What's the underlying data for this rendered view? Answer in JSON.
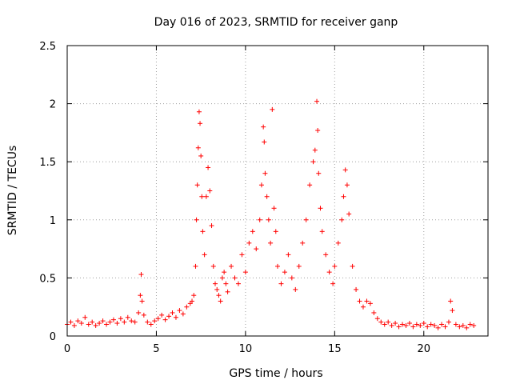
{
  "chart_data": {
    "type": "scatter",
    "title": "Day 016 of 2023, SRMTID for receiver ganp",
    "xlabel": "GPS time / hours",
    "ylabel": "SRMTID / TECUs",
    "xlim": [
      0,
      23.6
    ],
    "ylim": [
      0,
      2.5
    ],
    "xticks": [
      0,
      5,
      10,
      15,
      20
    ],
    "xtick_labels": [
      "0",
      "5",
      "10",
      "15",
      "20"
    ],
    "yticks": [
      0,
      0.5,
      1,
      1.5,
      2,
      2.5
    ],
    "ytick_labels": [
      "0",
      "0.5",
      "1",
      "1.5",
      "2",
      "2.5"
    ],
    "grid": true,
    "marker": "+",
    "color": "#ff0000",
    "series": [
      {
        "name": "SRMTID",
        "points": [
          [
            0.0,
            0.1
          ],
          [
            0.2,
            0.12
          ],
          [
            0.4,
            0.09
          ],
          [
            0.6,
            0.13
          ],
          [
            0.8,
            0.11
          ],
          [
            1.0,
            0.16
          ],
          [
            1.2,
            0.1
          ],
          [
            1.4,
            0.12
          ],
          [
            1.6,
            0.09
          ],
          [
            1.8,
            0.11
          ],
          [
            2.0,
            0.13
          ],
          [
            2.2,
            0.1
          ],
          [
            2.4,
            0.12
          ],
          [
            2.6,
            0.14
          ],
          [
            2.8,
            0.11
          ],
          [
            3.0,
            0.15
          ],
          [
            3.2,
            0.12
          ],
          [
            3.4,
            0.16
          ],
          [
            3.6,
            0.13
          ],
          [
            3.8,
            0.12
          ],
          [
            4.0,
            0.2
          ],
          [
            4.1,
            0.35
          ],
          [
            4.15,
            0.53
          ],
          [
            4.2,
            0.3
          ],
          [
            4.3,
            0.18
          ],
          [
            4.5,
            0.12
          ],
          [
            4.7,
            0.1
          ],
          [
            4.9,
            0.13
          ],
          [
            5.1,
            0.15
          ],
          [
            5.3,
            0.18
          ],
          [
            5.5,
            0.14
          ],
          [
            5.7,
            0.17
          ],
          [
            5.9,
            0.2
          ],
          [
            6.1,
            0.16
          ],
          [
            6.3,
            0.22
          ],
          [
            6.5,
            0.19
          ],
          [
            6.7,
            0.25
          ],
          [
            6.9,
            0.28
          ],
          [
            7.0,
            0.3
          ],
          [
            7.1,
            0.35
          ],
          [
            7.2,
            0.6
          ],
          [
            7.25,
            1.0
          ],
          [
            7.3,
            1.3
          ],
          [
            7.35,
            1.62
          ],
          [
            7.4,
            1.93
          ],
          [
            7.45,
            1.83
          ],
          [
            7.5,
            1.55
          ],
          [
            7.55,
            1.2
          ],
          [
            7.6,
            0.9
          ],
          [
            7.7,
            0.7
          ],
          [
            7.8,
            1.2
          ],
          [
            7.9,
            1.45
          ],
          [
            8.0,
            1.25
          ],
          [
            8.1,
            0.95
          ],
          [
            8.2,
            0.6
          ],
          [
            8.3,
            0.45
          ],
          [
            8.4,
            0.4
          ],
          [
            8.5,
            0.35
          ],
          [
            8.6,
            0.3
          ],
          [
            8.7,
            0.5
          ],
          [
            8.8,
            0.55
          ],
          [
            8.9,
            0.45
          ],
          [
            9.0,
            0.38
          ],
          [
            9.2,
            0.6
          ],
          [
            9.4,
            0.5
          ],
          [
            9.6,
            0.45
          ],
          [
            9.8,
            0.7
          ],
          [
            10.0,
            0.55
          ],
          [
            10.2,
            0.8
          ],
          [
            10.4,
            0.9
          ],
          [
            10.6,
            0.75
          ],
          [
            10.8,
            1.0
          ],
          [
            10.9,
            1.3
          ],
          [
            11.0,
            1.8
          ],
          [
            11.05,
            1.67
          ],
          [
            11.1,
            1.4
          ],
          [
            11.2,
            1.2
          ],
          [
            11.3,
            1.0
          ],
          [
            11.4,
            0.8
          ],
          [
            11.5,
            1.95
          ],
          [
            11.6,
            1.1
          ],
          [
            11.7,
            0.9
          ],
          [
            11.8,
            0.6
          ],
          [
            12.0,
            0.45
          ],
          [
            12.2,
            0.55
          ],
          [
            12.4,
            0.7
          ],
          [
            12.6,
            0.5
          ],
          [
            12.8,
            0.4
          ],
          [
            13.0,
            0.6
          ],
          [
            13.2,
            0.8
          ],
          [
            13.4,
            1.0
          ],
          [
            13.6,
            1.3
          ],
          [
            13.8,
            1.5
          ],
          [
            13.9,
            1.6
          ],
          [
            14.0,
            2.02
          ],
          [
            14.05,
            1.77
          ],
          [
            14.1,
            1.4
          ],
          [
            14.2,
            1.1
          ],
          [
            14.3,
            0.9
          ],
          [
            14.5,
            0.7
          ],
          [
            14.7,
            0.55
          ],
          [
            14.9,
            0.45
          ],
          [
            15.0,
            0.6
          ],
          [
            15.2,
            0.8
          ],
          [
            15.4,
            1.0
          ],
          [
            15.5,
            1.2
          ],
          [
            15.6,
            1.43
          ],
          [
            15.7,
            1.3
          ],
          [
            15.8,
            1.05
          ],
          [
            16.0,
            0.6
          ],
          [
            16.2,
            0.4
          ],
          [
            16.4,
            0.3
          ],
          [
            16.6,
            0.25
          ],
          [
            16.8,
            0.3
          ],
          [
            17.0,
            0.28
          ],
          [
            17.2,
            0.2
          ],
          [
            17.4,
            0.15
          ],
          [
            17.6,
            0.12
          ],
          [
            17.8,
            0.1
          ],
          [
            18.0,
            0.12
          ],
          [
            18.2,
            0.09
          ],
          [
            18.4,
            0.11
          ],
          [
            18.6,
            0.08
          ],
          [
            18.8,
            0.1
          ],
          [
            19.0,
            0.09
          ],
          [
            19.2,
            0.11
          ],
          [
            19.4,
            0.08
          ],
          [
            19.6,
            0.1
          ],
          [
            19.8,
            0.09
          ],
          [
            20.0,
            0.11
          ],
          [
            20.2,
            0.08
          ],
          [
            20.4,
            0.1
          ],
          [
            20.6,
            0.09
          ],
          [
            20.8,
            0.07
          ],
          [
            21.0,
            0.1
          ],
          [
            21.2,
            0.08
          ],
          [
            21.4,
            0.12
          ],
          [
            21.5,
            0.3
          ],
          [
            21.6,
            0.22
          ],
          [
            21.8,
            0.1
          ],
          [
            22.0,
            0.08
          ],
          [
            22.2,
            0.09
          ],
          [
            22.4,
            0.07
          ],
          [
            22.6,
            0.1
          ],
          [
            22.8,
            0.09
          ]
        ]
      }
    ]
  }
}
